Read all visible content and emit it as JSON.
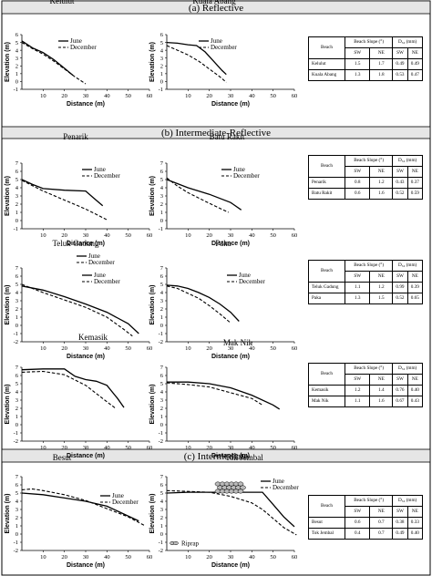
{
  "sections": [
    {
      "label": "(a) Reflective",
      "panels": [
        0,
        1
      ],
      "table": 0
    },
    {
      "label": "(b) Intermediate-Reflective",
      "panels": [
        2,
        3,
        4,
        5,
        6,
        7
      ],
      "table": null
    },
    {
      "label": "(c) Intermediate",
      "panels": [
        8,
        9
      ],
      "table": null
    }
  ],
  "legend_labels": [
    "June",
    "December"
  ],
  "riprap_label": "Riprap",
  "table_headers": {
    "beach": "Beach",
    "slope": "Beach Slope (°)",
    "d50": "D₅₀ (mm)",
    "sw": "SW",
    "ne": "NE"
  },
  "tables": [
    {
      "rows": [
        {
          "beach": "Kelulut",
          "vals": [
            "1.5",
            "1.7",
            "0.49",
            "0.49"
          ]
        },
        {
          "beach": "Kuala Abang",
          "vals": [
            "1.3",
            "1.8",
            "0.53",
            "0.47"
          ]
        }
      ]
    },
    {
      "rows": [
        {
          "beach": "Penarik",
          "vals": [
            "0.8",
            "1.2",
            "0.43",
            "0.37"
          ]
        },
        {
          "beach": "Batu Rakit",
          "vals": [
            "0.6",
            "1.6",
            "0.52",
            "0.59"
          ]
        }
      ]
    },
    {
      "rows": [
        {
          "beach": "Teluk Gadung",
          "vals": [
            "1.1",
            "1.2",
            "0.99",
            "0.39"
          ]
        },
        {
          "beach": "Paka",
          "vals": [
            "1.3",
            "1.5",
            "0.52",
            "0.65"
          ]
        }
      ]
    },
    {
      "rows": [
        {
          "beach": "Kemasik",
          "vals": [
            "1.2",
            "1.4",
            "0.76",
            "0.40"
          ]
        },
        {
          "beach": "Mak Nik",
          "vals": [
            "1.1",
            "1.6",
            "0.67",
            "0.43"
          ]
        }
      ]
    },
    {
      "rows": [
        {
          "beach": "Besut",
          "vals": [
            "0.6",
            "0.7",
            "0.38",
            "0.33"
          ]
        },
        {
          "beach": "Tok Jembal",
          "vals": [
            "0.4",
            "0.7",
            "0.49",
            "0.40"
          ]
        }
      ]
    }
  ],
  "chart_data": [
    {
      "type": "line",
      "title": "Kelulut",
      "xlabel": "Distance (m)",
      "ylabel": "Elevation (m)",
      "xlim": [
        0,
        60
      ],
      "ylim": [
        -1,
        6
      ],
      "xticks": [
        10,
        20,
        30,
        40,
        50,
        60
      ],
      "yticks": [
        -1,
        0,
        1,
        2,
        3,
        4,
        5,
        6
      ],
      "series": [
        {
          "name": "June",
          "x": [
            0,
            5,
            10,
            15,
            20,
            24
          ],
          "y": [
            5.2,
            4.3,
            3.7,
            2.8,
            1.7,
            0.8
          ]
        },
        {
          "name": "December",
          "x": [
            0,
            5,
            10,
            15,
            20,
            25,
            30
          ],
          "y": [
            5.0,
            4.2,
            3.5,
            2.6,
            1.6,
            0.6,
            -0.3
          ]
        }
      ]
    },
    {
      "type": "line",
      "title": "Kuala Abang",
      "xlabel": "Distance (m)",
      "ylabel": "Elevation (m)",
      "xlim": [
        0,
        60
      ],
      "ylim": [
        -1,
        6
      ],
      "xticks": [
        10,
        20,
        30,
        40,
        50,
        60
      ],
      "yticks": [
        -1,
        0,
        1,
        2,
        3,
        4,
        5,
        6
      ],
      "series": [
        {
          "name": "June",
          "x": [
            0,
            5,
            10,
            14,
            18,
            22,
            26,
            28
          ],
          "y": [
            5.0,
            4.9,
            4.7,
            4.6,
            3.8,
            2.6,
            1.4,
            0.9
          ]
        },
        {
          "name": "December",
          "x": [
            0,
            5,
            10,
            15,
            20,
            25,
            28
          ],
          "y": [
            4.6,
            4.0,
            3.4,
            2.6,
            1.6,
            0.6,
            -0.1
          ]
        }
      ]
    },
    {
      "type": "line",
      "title": "Penarik",
      "xlabel": "Distance (m)",
      "ylabel": "Elevation (m)",
      "xlim": [
        0,
        60
      ],
      "ylim": [
        -1,
        7
      ],
      "xticks": [
        10,
        20,
        30,
        40,
        50,
        60
      ],
      "yticks": [
        -1,
        0,
        1,
        2,
        3,
        4,
        5,
        6,
        7
      ],
      "series": [
        {
          "name": "June",
          "x": [
            0,
            5,
            10,
            20,
            30,
            34,
            38
          ],
          "y": [
            5.0,
            4.4,
            3.9,
            3.7,
            3.6,
            2.7,
            1.8
          ]
        },
        {
          "name": "December",
          "x": [
            0,
            10,
            20,
            30,
            40
          ],
          "y": [
            4.9,
            3.6,
            2.5,
            1.4,
            0.1
          ]
        }
      ]
    },
    {
      "type": "line",
      "title": "Batu Rakit",
      "xlabel": "Distance (m)",
      "ylabel": "Elevation (m)",
      "xlim": [
        0,
        60
      ],
      "ylim": [
        -1,
        7
      ],
      "xticks": [
        10,
        20,
        30,
        40,
        50,
        60
      ],
      "yticks": [
        -1,
        0,
        1,
        2,
        3,
        4,
        5,
        6,
        7
      ],
      "series": [
        {
          "name": "June",
          "x": [
            0,
            5,
            10,
            20,
            30,
            35
          ],
          "y": [
            5.0,
            4.5,
            4.0,
            3.2,
            2.2,
            1.3
          ]
        },
        {
          "name": "December",
          "x": [
            0,
            5,
            10,
            20,
            29
          ],
          "y": [
            5.2,
            4.2,
            3.4,
            2.1,
            1.0
          ]
        }
      ]
    },
    {
      "type": "line",
      "title": "Teluk Gadung",
      "xlabel": "Distance (m)",
      "ylabel": "Elevation (m)",
      "xlim": [
        0,
        60
      ],
      "ylim": [
        -2,
        7
      ],
      "xticks": [
        10,
        20,
        30,
        40,
        50,
        60
      ],
      "yticks": [
        -2,
        -1,
        0,
        1,
        2,
        3,
        4,
        5,
        6,
        7
      ],
      "series": [
        {
          "name": "June",
          "x": [
            0,
            10,
            20,
            30,
            40,
            50,
            55
          ],
          "y": [
            4.8,
            4.3,
            3.5,
            2.6,
            1.6,
            0.2,
            -1.0
          ]
        },
        {
          "name": "December",
          "x": [
            0,
            10,
            20,
            30,
            40,
            48,
            52
          ],
          "y": [
            5.0,
            4.0,
            3.1,
            2.2,
            1.0,
            -0.5,
            -1.3
          ]
        }
      ]
    },
    {
      "type": "line",
      "title": "Paka",
      "xlabel": "Distance (m)",
      "ylabel": "Elevation (m)",
      "xlim": [
        0,
        60
      ],
      "ylim": [
        -2,
        7
      ],
      "xticks": [
        10,
        20,
        30,
        40,
        50,
        60
      ],
      "yticks": [
        -2,
        -1,
        0,
        1,
        2,
        3,
        4,
        5,
        6,
        7
      ],
      "series": [
        {
          "name": "June",
          "x": [
            0,
            5,
            10,
            15,
            20,
            25,
            30,
            34
          ],
          "y": [
            4.9,
            4.8,
            4.5,
            4.0,
            3.4,
            2.6,
            1.6,
            0.5
          ]
        },
        {
          "name": "December",
          "x": [
            0,
            5,
            10,
            15,
            20,
            25,
            30
          ],
          "y": [
            4.8,
            4.5,
            3.9,
            3.3,
            2.4,
            1.4,
            0.3
          ]
        }
      ]
    },
    {
      "type": "line",
      "title": "Kemasik",
      "xlabel": "Distance (m)",
      "ylabel": "Elevation (m)",
      "xlim": [
        0,
        60
      ],
      "ylim": [
        -2,
        7
      ],
      "xticks": [
        10,
        20,
        30,
        40,
        50,
        60
      ],
      "yticks": [
        -2,
        -1,
        0,
        1,
        2,
        3,
        4,
        5,
        6,
        7
      ],
      "series": [
        {
          "name": "June",
          "x": [
            0,
            10,
            20,
            25,
            30,
            35,
            40,
            45,
            48
          ],
          "y": [
            6.7,
            6.8,
            6.8,
            5.9,
            5.5,
            5.3,
            4.8,
            3.2,
            2.1
          ]
        },
        {
          "name": "December",
          "x": [
            0,
            10,
            20,
            30,
            40,
            44
          ],
          "y": [
            6.4,
            6.5,
            6.1,
            4.8,
            2.8,
            2.0
          ]
        }
      ]
    },
    {
      "type": "line",
      "title": "Mak Nik",
      "xlabel": "Distance (m)",
      "ylabel": "Elevation (m)",
      "xlim": [
        0,
        60
      ],
      "ylim": [
        -2,
        7
      ],
      "xticks": [
        10,
        20,
        30,
        40,
        50,
        60
      ],
      "yticks": [
        -2,
        -1,
        0,
        1,
        2,
        3,
        4,
        5,
        6,
        7
      ],
      "series": [
        {
          "name": "June",
          "x": [
            0,
            10,
            20,
            30,
            40,
            50,
            53
          ],
          "y": [
            5.2,
            5.2,
            5.0,
            4.5,
            3.6,
            2.4,
            1.9
          ]
        },
        {
          "name": "December",
          "x": [
            0,
            10,
            20,
            30,
            40,
            45
          ],
          "y": [
            5.1,
            4.9,
            4.6,
            3.9,
            3.2,
            2.4
          ]
        }
      ]
    },
    {
      "type": "line",
      "title": "Besut",
      "xlabel": "Distance (m)",
      "ylabel": "Elevation (m)",
      "xlim": [
        0,
        60
      ],
      "ylim": [
        -2,
        7
      ],
      "xticks": [
        10,
        20,
        30,
        40,
        50,
        60
      ],
      "yticks": [
        -2,
        -1,
        0,
        1,
        2,
        3,
        4,
        5,
        6,
        7
      ],
      "series": [
        {
          "name": "June",
          "x": [
            0,
            10,
            20,
            30,
            40,
            50,
            55
          ],
          "y": [
            5.0,
            4.8,
            4.4,
            4.0,
            3.4,
            2.2,
            1.6
          ]
        },
        {
          "name": "December",
          "x": [
            0,
            5,
            10,
            20,
            30,
            40,
            50,
            58
          ],
          "y": [
            5.4,
            5.5,
            5.3,
            4.8,
            4.1,
            3.1,
            2.1,
            1.0
          ]
        }
      ]
    },
    {
      "type": "line",
      "title": "Tok Jembal",
      "xlabel": "Distance (m)",
      "ylabel": "Elevation (m)",
      "xlim": [
        0,
        60
      ],
      "ylim": [
        -2,
        7
      ],
      "xticks": [
        10,
        20,
        30,
        40,
        50,
        60
      ],
      "yticks": [
        -2,
        -1,
        0,
        1,
        2,
        3,
        4,
        5,
        6,
        7
      ],
      "series": [
        {
          "name": "June",
          "x": [
            0,
            10,
            20,
            30,
            40,
            45,
            50,
            55,
            60
          ],
          "y": [
            5.0,
            5.1,
            5.1,
            5.1,
            5.1,
            5.1,
            3.6,
            2.1,
            0.9
          ]
        },
        {
          "name": "December",
          "x": [
            0,
            10,
            20,
            30,
            40,
            45,
            50,
            55,
            61
          ],
          "y": [
            5.3,
            5.2,
            5.1,
            4.6,
            3.8,
            3.0,
            1.9,
            0.8,
            -0.1
          ]
        }
      ]
    }
  ]
}
